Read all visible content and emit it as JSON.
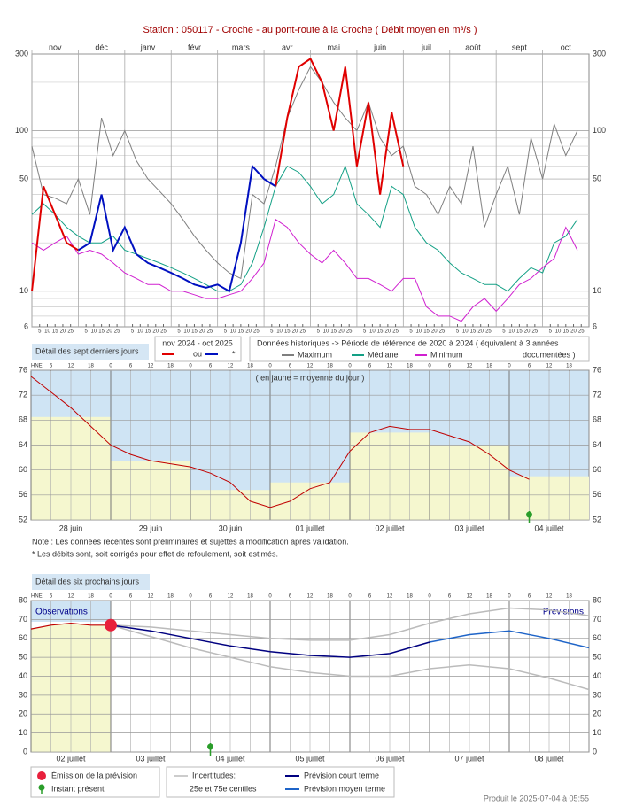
{
  "chart_data": [
    {
      "type": "line",
      "title": "Station : 050117     -   Croche - au pont-route à la Croche   ( Débit moyen en m³/s )",
      "months": [
        "nov",
        "déc",
        "janv",
        "févr",
        "mars",
        "avr",
        "mai",
        "juin",
        "juil",
        "août",
        "sept",
        "oct"
      ],
      "day_ticks": [
        5,
        10,
        15,
        20,
        25
      ],
      "x": [
        0,
        0.25,
        0.5,
        0.75,
        1,
        1.25,
        1.5,
        1.75,
        2,
        2.25,
        2.5,
        2.75,
        3,
        3.25,
        3.5,
        3.75,
        4,
        4.25,
        4.5,
        4.75,
        5,
        5.25,
        5.5,
        5.75,
        6,
        6.25,
        6.5,
        6.75,
        7,
        7.25,
        7.5,
        7.75,
        8,
        8.25,
        8.5,
        8.75,
        9,
        9.25,
        9.5,
        9.75,
        10,
        10.25,
        10.5,
        10.75,
        11,
        11.25,
        11.5,
        11.75
      ],
      "xlim": [
        0,
        12
      ],
      "ylim": [
        6,
        300
      ],
      "yticks": [
        6,
        10,
        50,
        100,
        300
      ],
      "yminor": [
        7,
        8,
        9,
        20,
        30,
        40,
        60,
        70,
        80,
        90,
        200
      ],
      "log_scale": true,
      "grid": true,
      "legend": {
        "period": "nov 2024 - oct 2025",
        "historic": "Données historiques -> Période de référence  de 2020 à 2024   ( équivalent à 3 années",
        "historic_2": "documentées )"
      },
      "series": [
        {
          "name": "Maximum",
          "color": "#7f7f7f",
          "values": [
            80,
            40,
            38,
            35,
            50,
            30,
            120,
            70,
            100,
            65,
            50,
            42,
            35,
            28,
            22,
            18,
            15,
            13,
            12,
            40,
            35,
            60,
            120,
            180,
            250,
            200,
            150,
            120,
            100,
            150,
            90,
            70,
            80,
            45,
            40,
            30,
            45,
            35,
            80,
            25,
            40,
            60,
            30,
            90,
            50,
            110,
            70,
            100
          ]
        },
        {
          "name": "Médiane",
          "color": "#13a085",
          "values": [
            30,
            35,
            30,
            25,
            22,
            20,
            20,
            22,
            18,
            17,
            16,
            15,
            14,
            13,
            12,
            11,
            10,
            10,
            11,
            15,
            25,
            45,
            60,
            55,
            45,
            35,
            40,
            60,
            35,
            30,
            25,
            45,
            40,
            25,
            20,
            18,
            15,
            13,
            12,
            11,
            11,
            10,
            12,
            14,
            13,
            20,
            22,
            28
          ]
        },
        {
          "name": "Minimum",
          "color": "#d020d0",
          "values": [
            20,
            18,
            20,
            22,
            17,
            18,
            17,
            15,
            13,
            12,
            11,
            11,
            10,
            10,
            9.5,
            9,
            9,
            9.5,
            10,
            12,
            15,
            28,
            25,
            20,
            17,
            15,
            18,
            15,
            12,
            12,
            11,
            10,
            12,
            12,
            8,
            7,
            7,
            6.5,
            8,
            9,
            7.5,
            9,
            11,
            12,
            14,
            16,
            25,
            18
          ]
        },
        {
          "name": "ou",
          "color": "#e00000",
          "values": [
            10,
            45,
            30,
            20,
            18,
            null,
            null,
            null,
            null,
            null,
            null,
            null,
            null,
            null,
            null,
            null,
            null,
            null,
            null,
            null,
            null,
            45,
            120,
            250,
            280,
            200,
            100,
            250,
            60,
            150,
            40,
            130,
            60,
            null,
            null,
            null,
            null,
            null,
            null,
            null,
            null,
            null,
            null,
            null,
            null,
            null,
            null,
            null
          ]
        },
        {
          "name": "*",
          "color": "#0010c0",
          "values": [
            null,
            null,
            null,
            null,
            18,
            20,
            40,
            18,
            25,
            17,
            15,
            14,
            13,
            12,
            11,
            10.5,
            11,
            10,
            20,
            60,
            50,
            45,
            null,
            null,
            null,
            null,
            null,
            null,
            null,
            null,
            null,
            null,
            null,
            null,
            null,
            null,
            null,
            null,
            null,
            null,
            null,
            null,
            null,
            null,
            null,
            null,
            null,
            null
          ]
        }
      ]
    },
    {
      "type": "line",
      "title": "Détail des sept derniers jours",
      "annotation": "( en jaune = moyenne du jour )",
      "days": [
        "28 juin",
        "29 juin",
        "30 juin",
        "01 juillet",
        "02 juillet",
        "03 juillet",
        "04 juillet"
      ],
      "hour_labels": [
        "HNE",
        "6",
        "12",
        "18",
        "0",
        "6",
        "12",
        "18",
        "0",
        "6",
        "12",
        "18",
        "0",
        "6",
        "12",
        "18",
        "0",
        "6",
        "12",
        "18",
        "0",
        "6",
        "12",
        "18",
        "0",
        "6",
        "12",
        "18"
      ],
      "xlim": [
        0,
        7
      ],
      "ylim": [
        52,
        76
      ],
      "yticks": [
        52,
        56,
        60,
        64,
        68,
        72,
        76
      ],
      "grid": true,
      "daily_mean": {
        "color": "#f5f7cf",
        "values": [
          68.5,
          61.5,
          56.8,
          58,
          66,
          64,
          59
        ]
      },
      "x": [
        0,
        0.25,
        0.5,
        0.75,
        1,
        1.25,
        1.5,
        1.75,
        2,
        2.25,
        2.5,
        2.75,
        3,
        3.25,
        3.5,
        3.75,
        4,
        4.25,
        4.5,
        4.75,
        5,
        5.25,
        5.5,
        5.75,
        6,
        6.25
      ],
      "series": [
        {
          "color": "#c00000",
          "values": [
            75,
            72.5,
            70,
            67,
            64,
            62.5,
            61.5,
            61,
            60.5,
            59.5,
            58,
            55,
            54,
            55,
            57,
            58,
            63,
            66,
            67,
            66.5,
            66.5,
            65.5,
            64.5,
            62.5,
            60,
            58.5
          ]
        }
      ],
      "present": 6.25,
      "notes": [
        "Note : Les données récentes sont préliminaires et sujettes à modification après validation.",
        "* Les débits sont, soit corrigés pour effet de refoulement, soit estimés."
      ]
    },
    {
      "type": "line",
      "title": "Détail des six prochains jours",
      "days": [
        "02 juillet",
        "03 juillet",
        "04 juillet",
        "05 juillet",
        "06 juillet",
        "07 juillet",
        "08 juillet"
      ],
      "hour_labels": [
        "HNE",
        "6",
        "12",
        "18",
        "0",
        "6",
        "12",
        "18",
        "0",
        "6",
        "12",
        "18",
        "0",
        "6",
        "12",
        "18",
        "0",
        "6",
        "12",
        "18",
        "0",
        "6",
        "12",
        "18",
        "0",
        "6",
        "12",
        "18"
      ],
      "xlim": [
        0,
        7
      ],
      "ylim": [
        0,
        80
      ],
      "yticks": [
        0,
        10,
        20,
        30,
        40,
        50,
        60,
        70,
        80
      ],
      "grid": true,
      "observations": {
        "label": "Observations",
        "color": "#c00000",
        "fill": "#f5f7cf",
        "x": [
          0,
          0.25,
          0.5,
          0.75,
          1
        ],
        "values": [
          65,
          67,
          68,
          67,
          67
        ]
      },
      "forecast_label": "Prévisions",
      "emission": {
        "label": "Émission de la prévision",
        "color": "#e8203c",
        "x": 1,
        "value": 67
      },
      "present": 2.25,
      "present_label": "Instant présent",
      "present_color": "#2a9d2a",
      "uncertainty": {
        "label": "Incertitudes:",
        "label_2": "25e et 75e centiles",
        "color": "#bbbbbb",
        "upper": [
          67,
          66,
          64,
          62,
          60,
          59,
          59,
          62,
          68,
          73,
          76,
          75,
          72
        ],
        "lower": [
          67,
          61,
          55,
          50,
          45,
          42,
          40,
          40,
          44,
          46,
          44,
          39,
          33
        ]
      },
      "x": [
        1,
        1.5,
        2,
        2.5,
        3,
        3.5,
        4,
        4.5,
        5,
        5.5,
        6,
        6.5,
        7
      ],
      "series": [
        {
          "name": "Prévision court terme",
          "color": "#000080",
          "values": [
            67,
            64,
            60,
            56,
            53,
            51,
            50,
            52,
            58,
            null,
            null,
            null,
            null
          ]
        },
        {
          "name": "Prévision moyen terme",
          "color": "#1e64c8",
          "values": [
            null,
            null,
            null,
            null,
            null,
            null,
            null,
            null,
            58,
            62,
            64,
            60,
            55
          ]
        }
      ]
    }
  ],
  "footer": "Produit le 2025-07-04 à 05:55"
}
